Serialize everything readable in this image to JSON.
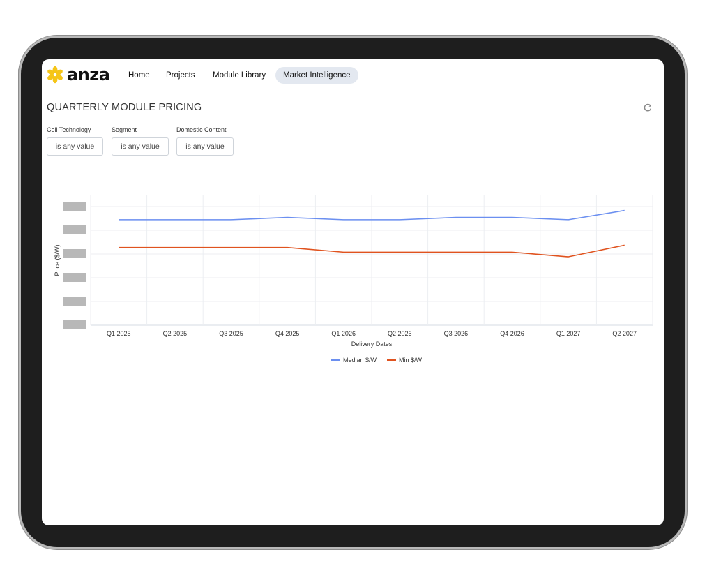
{
  "app": {
    "brand": "anza",
    "brand_color": "#f5c518"
  },
  "nav": {
    "items": [
      {
        "label": "Home",
        "active": false
      },
      {
        "label": "Projects",
        "active": false
      },
      {
        "label": "Module Library",
        "active": false
      },
      {
        "label": "Market Intelligence",
        "active": true
      }
    ]
  },
  "page": {
    "title": "QUARTERLY MODULE PRICING",
    "refresh_icon": "refresh-icon"
  },
  "filters": [
    {
      "label": "Cell Technology",
      "value": "is any value"
    },
    {
      "label": "Segment",
      "value": "is any value"
    },
    {
      "label": "Domestic Content",
      "value": "is any value"
    }
  ],
  "chart_data": {
    "type": "line",
    "title": "",
    "xlabel": "Delivery Dates",
    "ylabel": "Price ($/W)",
    "y_tick_labels_redacted": true,
    "categories": [
      "Q1 2025",
      "Q2 2025",
      "Q3 2025",
      "Q4 2025",
      "Q1 2026",
      "Q2 2026",
      "Q3 2026",
      "Q4 2026",
      "Q1 2027",
      "Q2 2027"
    ],
    "series": [
      {
        "name": "Median $/W",
        "color": "#6b8ff0",
        "values": [
          4.55,
          4.55,
          4.55,
          4.65,
          4.55,
          4.55,
          4.65,
          4.65,
          4.55,
          4.95
        ]
      },
      {
        "name": "Min $/W",
        "color": "#e0531f",
        "values": [
          3.35,
          3.35,
          3.35,
          3.35,
          3.15,
          3.15,
          3.15,
          3.15,
          2.95,
          3.45
        ]
      }
    ],
    "ylim": [
      0,
      5.6
    ],
    "grid": true,
    "legend_position": "bottom-center"
  }
}
